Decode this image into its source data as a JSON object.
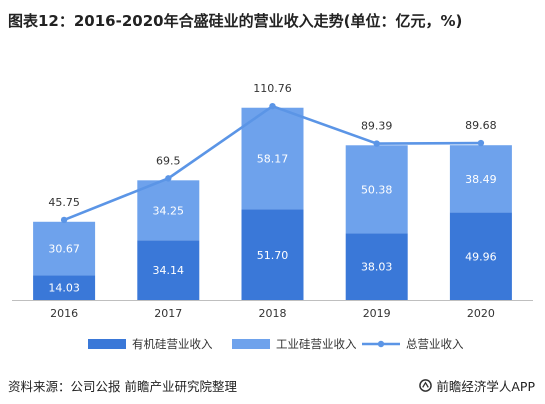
{
  "title": "图表12：2016-2020年合盛硅业的营业收入走势(单位：亿元，%)",
  "footer": {
    "source": "资料来源：公司公报 前瞻产业研究院整理",
    "brand": "前瞻经济学人APP",
    "brand_icon": "qianzhan-logo-icon"
  },
  "colors": {
    "organic": "#3a78d8",
    "industrial": "#6ea2ec",
    "line": "#5b95e6",
    "label_light": "#ffffff",
    "label_dark": "#333333",
    "axis": "#bfbfbf"
  },
  "chart_data": {
    "type": "bar",
    "stacked": true,
    "categories": [
      "2016",
      "2017",
      "2018",
      "2019",
      "2020"
    ],
    "series": [
      {
        "name": "有机硅营业收入",
        "type": "bar",
        "values": [
          14.03,
          34.14,
          51.7,
          38.03,
          49.96
        ]
      },
      {
        "name": "工业硅营业收入",
        "type": "bar",
        "values": [
          30.67,
          34.25,
          58.17,
          50.38,
          38.49
        ]
      },
      {
        "name": "总营业收入",
        "type": "line",
        "values": [
          45.75,
          69.5,
          110.76,
          89.39,
          89.68
        ]
      }
    ],
    "value_labels": {
      "organic": [
        "14.03",
        "34.14",
        "51.70",
        "38.03",
        "49.96"
      ],
      "industrial": [
        "30.67",
        "34.25",
        "58.17",
        "50.38",
        "38.49"
      ],
      "total": [
        "45.75",
        "69.5",
        "110.76",
        "89.39",
        "89.68"
      ]
    },
    "ylim": [
      0,
      120
    ],
    "grid": false,
    "legend_position": "bottom"
  }
}
